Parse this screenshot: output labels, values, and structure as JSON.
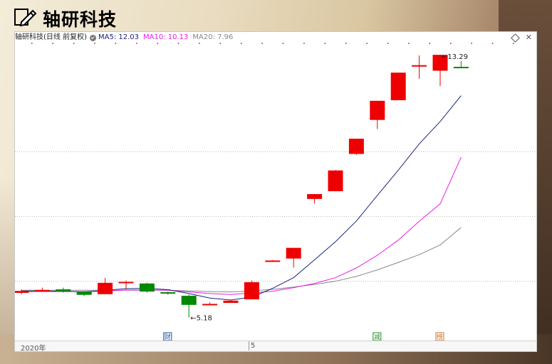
{
  "header": {
    "title": "轴研科技"
  },
  "info_bar": {
    "stock": "轴研科技(日线 前复权)",
    "ma5": "MA5: 12.03",
    "ma10": "MA10: 10.13",
    "ma20": "MA20: 7.96"
  },
  "footer": {
    "year": "2020年",
    "month": "5"
  },
  "colors": {
    "up": "#ee0000",
    "down": "#008800",
    "ma5": "#1a237e",
    "ma10": "#e81ee8",
    "ma20": "#888888"
  },
  "chart_data": {
    "type": "candlestick",
    "ylim": [
      4.6,
      13.6
    ],
    "grid_y": [
      6.3,
      8.3,
      10.3
    ],
    "candles": [
      {
        "o": 5.94,
        "c": 6.0,
        "h": 6.05,
        "l": 5.9
      },
      {
        "o": 6.0,
        "c": 6.03,
        "h": 6.1,
        "l": 5.97
      },
      {
        "o": 6.05,
        "c": 5.98,
        "h": 6.1,
        "l": 5.95
      },
      {
        "o": 5.98,
        "c": 5.88,
        "h": 5.99,
        "l": 5.84
      },
      {
        "o": 5.9,
        "c": 6.25,
        "h": 6.4,
        "l": 5.9
      },
      {
        "o": 6.25,
        "c": 6.28,
        "h": 6.32,
        "l": 6.05
      },
      {
        "o": 6.23,
        "c": 5.98,
        "h": 6.25,
        "l": 5.95
      },
      {
        "o": 5.96,
        "c": 5.92,
        "h": 5.98,
        "l": 5.88
      },
      {
        "o": 5.85,
        "c": 5.57,
        "h": 5.89,
        "l": 5.18
      },
      {
        "o": 5.58,
        "c": 5.6,
        "h": 5.65,
        "l": 5.56
      },
      {
        "o": 5.63,
        "c": 5.7,
        "h": 5.72,
        "l": 5.63
      },
      {
        "o": 5.74,
        "c": 6.27,
        "h": 6.32,
        "l": 5.74
      },
      {
        "o": 6.92,
        "c": 6.94,
        "h": 6.95,
        "l": 6.92
      },
      {
        "o": 7.0,
        "c": 7.33,
        "h": 7.33,
        "l": 6.72
      },
      {
        "o": 8.84,
        "c": 8.99,
        "h": 8.99,
        "l": 8.7
      },
      {
        "o": 9.08,
        "c": 9.72,
        "h": 9.73,
        "l": 9.08
      },
      {
        "o": 10.23,
        "c": 10.7,
        "h": 10.7,
        "l": 10.2
      },
      {
        "o": 11.28,
        "c": 11.87,
        "h": 11.87,
        "l": 11.0
      },
      {
        "o": 11.89,
        "c": 12.74,
        "h": 12.74,
        "l": 11.89
      },
      {
        "o": 12.93,
        "c": 12.97,
        "h": 13.27,
        "l": 12.55
      },
      {
        "o": 12.8,
        "c": 13.29,
        "h": 13.29,
        "l": 12.33
      },
      {
        "o": 12.92,
        "c": 12.89,
        "h": 13.1,
        "l": 12.89
      }
    ],
    "ma5": [
      6.0,
      6.0,
      5.99,
      5.97,
      6.02,
      6.07,
      6.08,
      6.04,
      5.92,
      5.78,
      5.72,
      5.81,
      6.08,
      6.41,
      6.96,
      7.52,
      8.16,
      8.95,
      9.73,
      10.54,
      11.23,
      12.03
    ],
    "ma10": [
      5.98,
      5.98,
      5.98,
      5.98,
      5.99,
      6.03,
      6.03,
      6.02,
      5.97,
      5.92,
      5.89,
      5.94,
      5.99,
      6.1,
      6.23,
      6.41,
      6.71,
      7.1,
      7.57,
      8.15,
      8.69,
      10.13
    ],
    "ma20": [
      6.02,
      6.02,
      6.02,
      6.02,
      6.02,
      6.02,
      6.02,
      6.02,
      6.0,
      5.98,
      5.97,
      6.0,
      6.05,
      6.12,
      6.2,
      6.3,
      6.45,
      6.65,
      6.88,
      7.12,
      7.42,
      7.96
    ],
    "annotations": {
      "high_label": "13.29",
      "low_label": "5.18",
      "markers": [
        {
          "index": 7,
          "text": "财",
          "color": "#1f4e9e"
        },
        {
          "index": 17,
          "text": "减",
          "color": "#2a8c2a"
        },
        {
          "index": 20,
          "text": "榜",
          "color": "#c87228"
        }
      ]
    }
  }
}
